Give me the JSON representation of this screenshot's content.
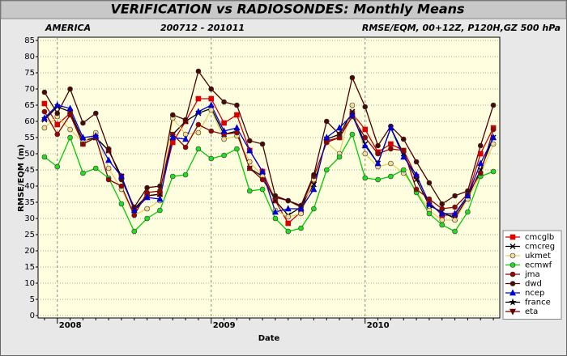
{
  "chart_data": {
    "type": "line",
    "title": "VERIFICATION vs RADIOSONDES: Monthly Means",
    "subtitles": [
      "AMERICA",
      "200712 - 201011",
      "RMSE/EQM, 00+12Z, P120H,GZ 500 hPa"
    ],
    "x_label": "Date",
    "y_label": "RMSE/EQM (m)",
    "categories": [
      null,
      "2008",
      null,
      null,
      null,
      null,
      null,
      null,
      null,
      null,
      null,
      null,
      null,
      "2009",
      null,
      null,
      null,
      null,
      null,
      null,
      null,
      null,
      null,
      null,
      null,
      "2010",
      null,
      null,
      null,
      null,
      null,
      null,
      null,
      null,
      null,
      null
    ],
    "ylim": [
      0,
      85
    ],
    "yticks": [
      0,
      5,
      10,
      15,
      20,
      25,
      30,
      35,
      40,
      45,
      50,
      55,
      60,
      65,
      70,
      75,
      80,
      85
    ],
    "grid": true,
    "legend": "right",
    "series": [
      {
        "name": "cmcglb",
        "color": "#cc0000",
        "fill": "#dd0000",
        "marker": "square",
        "values": [
          65.5,
          59,
          62.5,
          53,
          55,
          51,
          43,
          33,
          37,
          37.5,
          53.5,
          60,
          67,
          67,
          59.5,
          62,
          51,
          44.5,
          35.5,
          28.5,
          32,
          42,
          54,
          55,
          62.5,
          57.5,
          50.5,
          53,
          51,
          43,
          35,
          31,
          31,
          37,
          50,
          58
        ]
      },
      {
        "name": "cmcreg",
        "color": "#000000",
        "fill": "#000000",
        "marker": "x",
        "values": [
          60.5,
          64.5,
          63,
          54,
          55,
          51,
          43,
          33,
          37,
          37.5,
          56,
          60,
          62.5,
          64,
          56,
          57,
          45.5,
          43,
          35.5,
          31,
          33.5,
          40.5,
          54.5,
          56,
          63,
          53,
          47,
          58,
          50,
          42,
          34,
          32,
          30,
          36.5,
          45,
          55
        ]
      },
      {
        "name": "ukmet",
        "color": "#e8d060",
        "fill": "#f0dc98",
        "marker": "circle",
        "values": [
          58,
          61.5,
          57.5,
          53.5,
          56.5,
          45.5,
          39,
          31,
          33,
          35.5,
          61,
          56,
          56.5,
          63.5,
          54.5,
          55.5,
          47.5,
          43,
          32.5,
          30.5,
          31.5,
          42,
          53.5,
          50,
          65,
          50,
          46,
          47,
          44,
          38.5,
          32.5,
          29.5,
          29.5,
          36,
          43.5,
          53
        ]
      },
      {
        "name": "ecmwf",
        "color": "#00cc00",
        "fill": "#22dd22",
        "marker": "circle",
        "values": [
          49,
          46,
          55,
          44,
          45.5,
          42.5,
          34.5,
          26,
          30,
          32.5,
          43,
          43.5,
          51.5,
          48.5,
          49.5,
          51.5,
          38.5,
          39,
          30,
          26,
          27,
          33,
          45,
          49,
          56,
          42.5,
          42,
          43,
          45,
          38,
          31.5,
          28,
          26,
          32,
          43,
          44.5
        ]
      },
      {
        "name": "jma",
        "color": "#880000",
        "fill": "#990000",
        "marker": "circle",
        "values": [
          63,
          56,
          62,
          53,
          55,
          42,
          40,
          31,
          38,
          38.5,
          56,
          52,
          59,
          57,
          56,
          56.5,
          45.5,
          42,
          36.5,
          35.5,
          33.5,
          43,
          53.5,
          55,
          61.5,
          55,
          50,
          51.5,
          51,
          39,
          36,
          33,
          33.5,
          37.5,
          44,
          57.5
        ]
      },
      {
        "name": "dwd",
        "color": "#4a0000",
        "fill": "#4a0808",
        "marker": "circle",
        "values": [
          69,
          62.5,
          70,
          59.5,
          62.5,
          51.5,
          42,
          33.5,
          39.5,
          40,
          62,
          60.5,
          75.5,
          70,
          66,
          65,
          54,
          53,
          37,
          35.5,
          34,
          43.5,
          60,
          56,
          73.5,
          64.5,
          52.5,
          58.5,
          54.5,
          47.5,
          41,
          34.5,
          37,
          38.5,
          52.5,
          65
        ]
      },
      {
        "name": "ncep",
        "color": "#0000cc",
        "fill": "#0000dd",
        "marker": "triangle",
        "values": [
          61,
          65,
          64,
          55,
          55.5,
          48,
          43,
          32.5,
          36.5,
          36,
          55,
          54.5,
          63,
          65,
          57,
          58,
          51,
          44.5,
          32,
          33,
          33,
          39,
          55,
          58,
          62,
          52.5,
          47,
          58,
          49,
          43.5,
          34.5,
          31.5,
          31.5,
          37,
          47,
          55
        ]
      },
      {
        "name": "france",
        "color": "#000000",
        "fill": "#000000",
        "marker": "star",
        "values": [
          null,
          null,
          null,
          null,
          null,
          null,
          null,
          null,
          null,
          null,
          null,
          null,
          null,
          null,
          null,
          null,
          null,
          null,
          null,
          null,
          null,
          null,
          null,
          null,
          null,
          null,
          null,
          null,
          null,
          null,
          null,
          null,
          null,
          null,
          null,
          null
        ]
      },
      {
        "name": "eta",
        "color": "#660000",
        "fill": "#660000",
        "marker": "triangle-down",
        "values": [
          null,
          null,
          null,
          null,
          null,
          null,
          null,
          null,
          null,
          null,
          null,
          null,
          null,
          null,
          null,
          null,
          null,
          null,
          null,
          null,
          null,
          null,
          null,
          null,
          null,
          null,
          null,
          null,
          null,
          null,
          null,
          null,
          null,
          null,
          null,
          null
        ]
      }
    ]
  }
}
